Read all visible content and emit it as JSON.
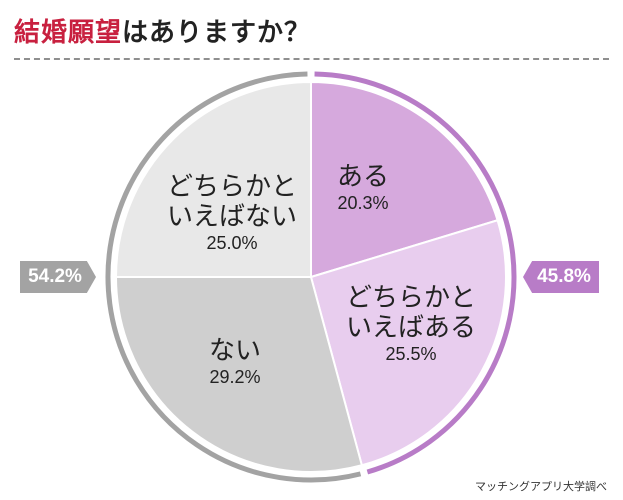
{
  "title": {
    "highlight": "結婚願望",
    "rest": "はありますか？"
  },
  "chart_data": {
    "type": "pie",
    "slices": [
      {
        "name": "ある",
        "value": 20.3,
        "label": "20.3%",
        "color": "#d6a9dd"
      },
      {
        "name": "どちらかと\nいえばある",
        "value": 25.5,
        "label": "25.5%",
        "color": "#e8cdee"
      },
      {
        "name": "ない",
        "value": 29.2,
        "label": "29.2%",
        "color": "#cfcfcf"
      },
      {
        "name": "どちらかと\nいえばない",
        "value": 25.0,
        "label": "25.0%",
        "color": "#e8e8e8"
      }
    ],
    "groups": [
      {
        "label": "45.8%",
        "value": 45.8,
        "color": "#b87cc7",
        "side": "right"
      },
      {
        "label": "54.2%",
        "value": 54.2,
        "color": "#a3a3a3",
        "side": "left"
      }
    ]
  },
  "source": "マッチングアプリ大学調べ"
}
